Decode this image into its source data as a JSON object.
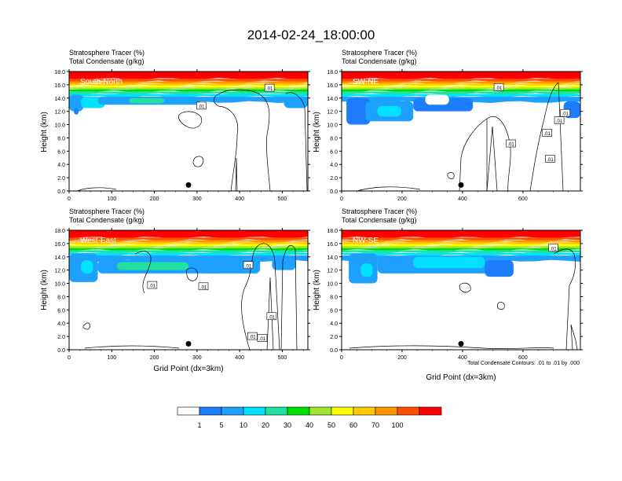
{
  "figure": {
    "title": "2014-02-24_18:00:00",
    "contour_note": "Total Condensate Contours: .01 to .01 by .000"
  },
  "colorbar": {
    "colors": [
      "#ffffff",
      "#1e7cff",
      "#1ea0ff",
      "#00e0ff",
      "#21e0a0",
      "#00e000",
      "#a0e632",
      "#ffff00",
      "#ffc800",
      "#ff9600",
      "#ff5000",
      "#ff0000"
    ],
    "labels": [
      "1",
      "5",
      "10",
      "20",
      "30",
      "40",
      "50",
      "60",
      "70",
      "100"
    ]
  },
  "chart_data": [
    {
      "type": "heatmap",
      "label": "South-North",
      "title_line1": "Stratosphere Tracer   (%)",
      "title_line2": "Total Condensate   (g/kg)",
      "ylabel": "Height (km)",
      "xlabel": "",
      "xlim": [
        0,
        560
      ],
      "ylim": [
        0,
        18
      ],
      "xticks": [
        "0",
        "100",
        "200",
        "300",
        "400",
        "500"
      ],
      "yticks": [
        "0.0",
        "2.0",
        "4.0",
        "6.0",
        "8.0",
        "10.0",
        "12.0",
        "14.0",
        "16.0",
        "18.0"
      ],
      "marker_x": 280,
      "contour_labels": [
        {
          "text": ".01",
          "x": 310,
          "y": 12.8
        },
        {
          "text": ".01",
          "x": 470,
          "y": 15.5
        }
      ]
    },
    {
      "type": "heatmap",
      "label": "SW-NE",
      "title_line1": "Stratosphere Tracer   (%)",
      "title_line2": "Total Condensate   (g/kg)",
      "ylabel": "Height (km)",
      "xlabel": "",
      "xlim": [
        0,
        790
      ],
      "ylim": [
        0,
        18
      ],
      "xticks": [
        "0",
        "200",
        "400",
        "600"
      ],
      "yticks": [
        "0.0",
        "2.0",
        "4.0",
        "6.0",
        "8.0",
        "10.0",
        "12.0",
        "14.0",
        "16.0",
        "18.0"
      ],
      "marker_x": 395,
      "contour_labels": [
        {
          "text": ".01",
          "x": 520,
          "y": 15.6
        },
        {
          "text": ".01",
          "x": 720,
          "y": 10.6
        },
        {
          "text": ".01",
          "x": 740,
          "y": 11.7
        },
        {
          "text": ".01",
          "x": 680,
          "y": 8.7
        },
        {
          "text": ".01",
          "x": 560,
          "y": 7.1
        },
        {
          "text": ".01",
          "x": 690,
          "y": 4.8
        }
      ]
    },
    {
      "type": "heatmap",
      "label": "West-East",
      "title_line1": "Stratosphere Tracer   (%)",
      "title_line2": "Total Condensate   (g/kg)",
      "ylabel": "Height (km)",
      "xlabel": "Grid Point (dx=3km)",
      "xlim": [
        0,
        560
      ],
      "ylim": [
        0,
        18
      ],
      "xticks": [
        "0",
        "100",
        "200",
        "300",
        "400",
        "500"
      ],
      "yticks": [
        "0.0",
        "2.0",
        "4.0",
        "6.0",
        "8.0",
        "10.0",
        "12.0",
        "14.0",
        "16.0",
        "18.0"
      ],
      "marker_x": 280,
      "contour_labels": [
        {
          "text": ".01",
          "x": 195,
          "y": 9.7
        },
        {
          "text": ".01",
          "x": 315,
          "y": 9.5
        },
        {
          "text": ".01",
          "x": 420,
          "y": 12.7
        },
        {
          "text": ".01",
          "x": 475,
          "y": 5.0
        },
        {
          "text": ".01",
          "x": 430,
          "y": 2.0
        },
        {
          "text": ".01",
          "x": 453,
          "y": 1.7
        }
      ]
    },
    {
      "type": "heatmap",
      "label": "NW-SE",
      "title_line1": "Stratosphere Tracer   (%)",
      "title_line2": "Total Condensate   (g/kg)",
      "ylabel": "Height (km)",
      "xlabel": "Grid Point (dx=3km)",
      "xlim": [
        0,
        790
      ],
      "ylim": [
        0,
        18
      ],
      "xticks": [
        "0",
        "200",
        "400",
        "600"
      ],
      "yticks": [
        "0.0",
        "2.0",
        "4.0",
        "6.0",
        "8.0",
        "10.0",
        "12.0",
        "14.0",
        "16.0",
        "18.0"
      ],
      "marker_x": 395,
      "contour_labels": [
        {
          "text": ".01",
          "x": 700,
          "y": 15.3
        }
      ]
    }
  ]
}
